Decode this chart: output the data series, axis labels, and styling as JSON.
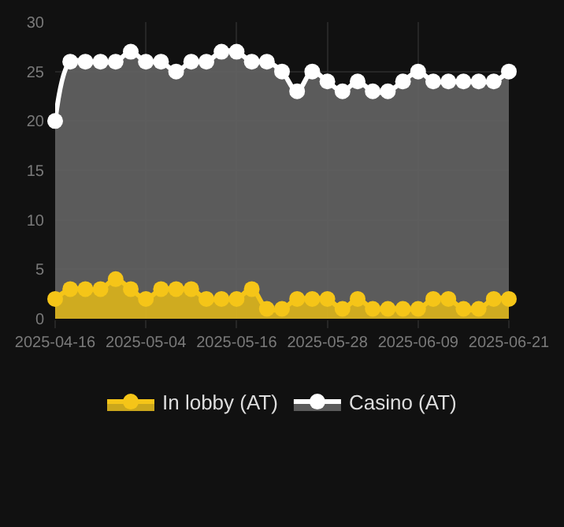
{
  "chart_data": {
    "type": "area",
    "categories": [
      "2025-04-16",
      null,
      null,
      null,
      null,
      null,
      "2025-05-04",
      null,
      null,
      null,
      null,
      null,
      "2025-05-16",
      null,
      null,
      null,
      null,
      null,
      "2025-05-28",
      null,
      null,
      null,
      null,
      null,
      "2025-06-09",
      null,
      null,
      null,
      null,
      null,
      "2025-06-21"
    ],
    "series": [
      {
        "name": "In lobby (AT)",
        "color": "#f5c518",
        "values": [
          2,
          3,
          3,
          3,
          4,
          3,
          2,
          3,
          3,
          3,
          2,
          2,
          2,
          3,
          1,
          1,
          2,
          2,
          2,
          1,
          2,
          1,
          1,
          1,
          1,
          2,
          2,
          1,
          1,
          2,
          2
        ]
      },
      {
        "name": "Casino (AT)",
        "color": "#ffffff",
        "values": [
          20,
          26,
          26,
          26,
          26,
          27,
          26,
          26,
          25,
          26,
          26,
          27,
          27,
          26,
          26,
          25,
          23,
          25,
          24,
          23,
          24,
          23,
          23,
          24,
          25,
          24,
          24,
          24,
          24,
          24,
          25
        ]
      }
    ],
    "ylim": [
      0,
      30
    ],
    "yticks": [
      0,
      5,
      10,
      15,
      20,
      25,
      30
    ],
    "grid": true,
    "legend": "bottom",
    "marker": "circle"
  }
}
